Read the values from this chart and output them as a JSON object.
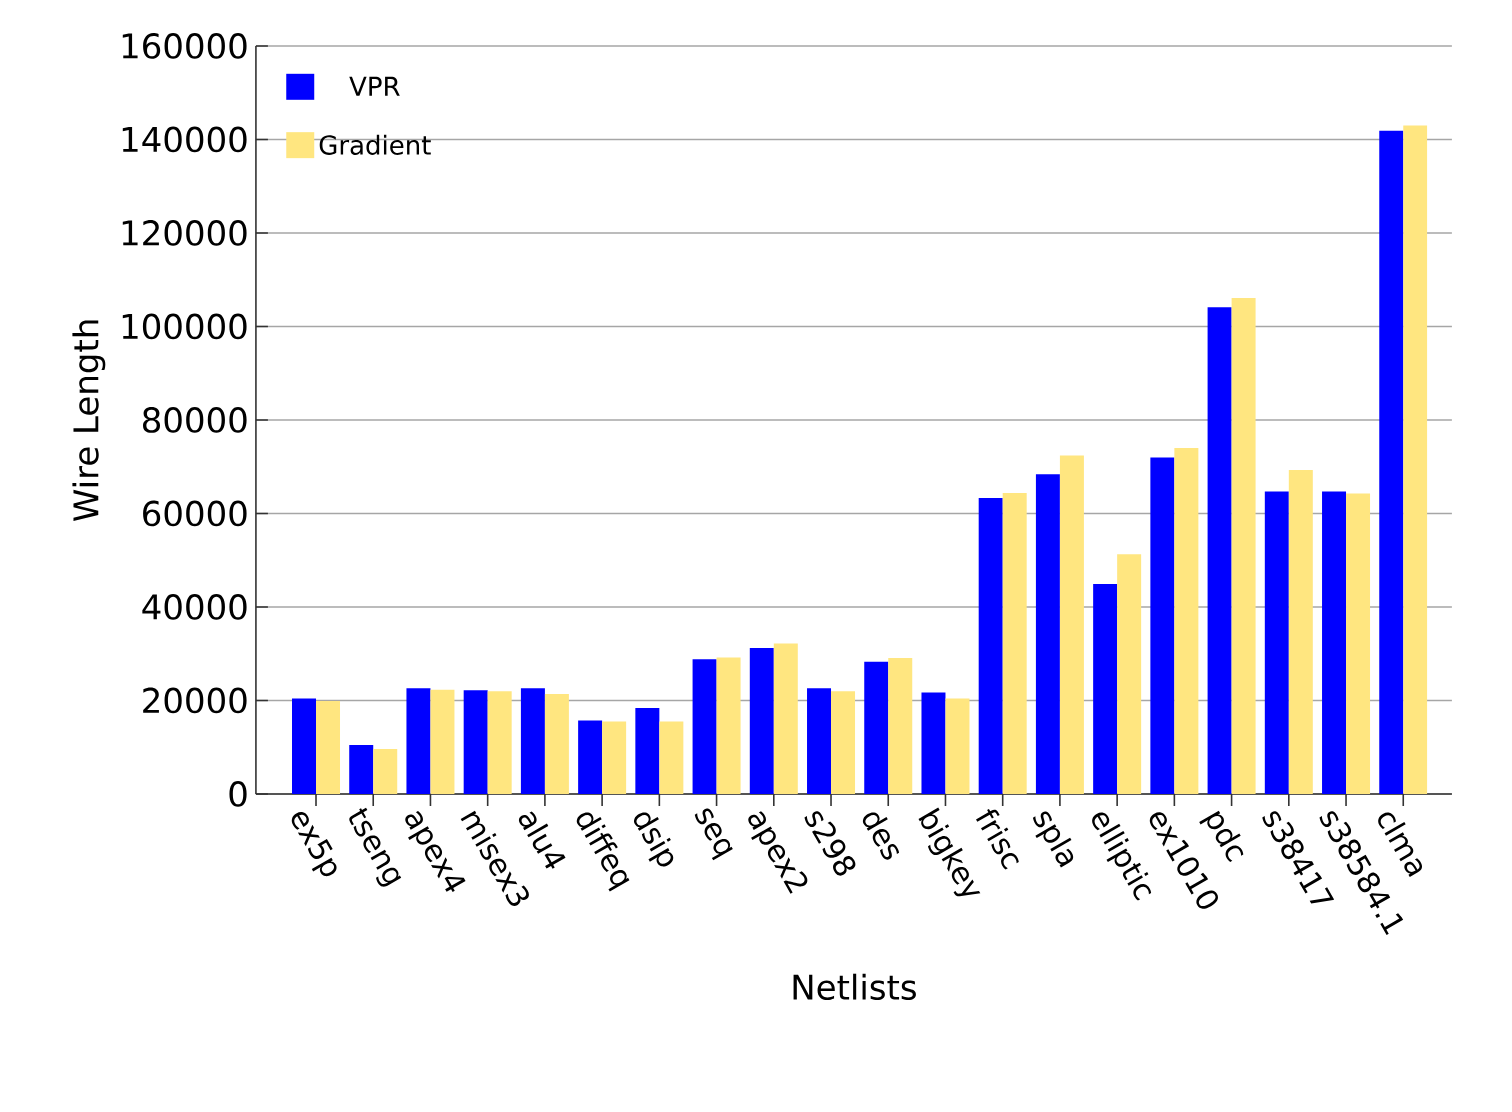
{
  "chart_data": {
    "type": "bar",
    "xlabel": "Netlists",
    "ylabel": "Wire Length",
    "categories": [
      "ex5p",
      "tseng",
      "apex4",
      "misex3",
      "alu4",
      "diffeq",
      "dsip",
      "seq",
      "apex2",
      "s298",
      "des",
      "bigkey",
      "frisc",
      "spla",
      "elliptic",
      "ex1010",
      "pdc",
      "s38417",
      "s38584.1",
      "clma"
    ],
    "series": [
      {
        "name": "VPR",
        "color": "#0000ff",
        "values": [
          20400,
          10500,
          22600,
          22200,
          22600,
          15700,
          18400,
          28800,
          31200,
          22600,
          28300,
          21700,
          63300,
          68400,
          44900,
          72000,
          104100,
          64700,
          64700,
          141900
        ]
      },
      {
        "name": "Gradient",
        "color": "#ffe680",
        "values": [
          19900,
          9600,
          22300,
          22000,
          21400,
          15500,
          15500,
          29200,
          32200,
          22000,
          29100,
          20400,
          64400,
          72400,
          51300,
          74000,
          106100,
          69300,
          64300,
          143000
        ]
      }
    ],
    "ylim": [
      0,
      160000
    ],
    "yticks": [
      0,
      20000,
      40000,
      60000,
      80000,
      100000,
      120000,
      140000,
      160000
    ],
    "grid": "y",
    "legend": "top left"
  }
}
